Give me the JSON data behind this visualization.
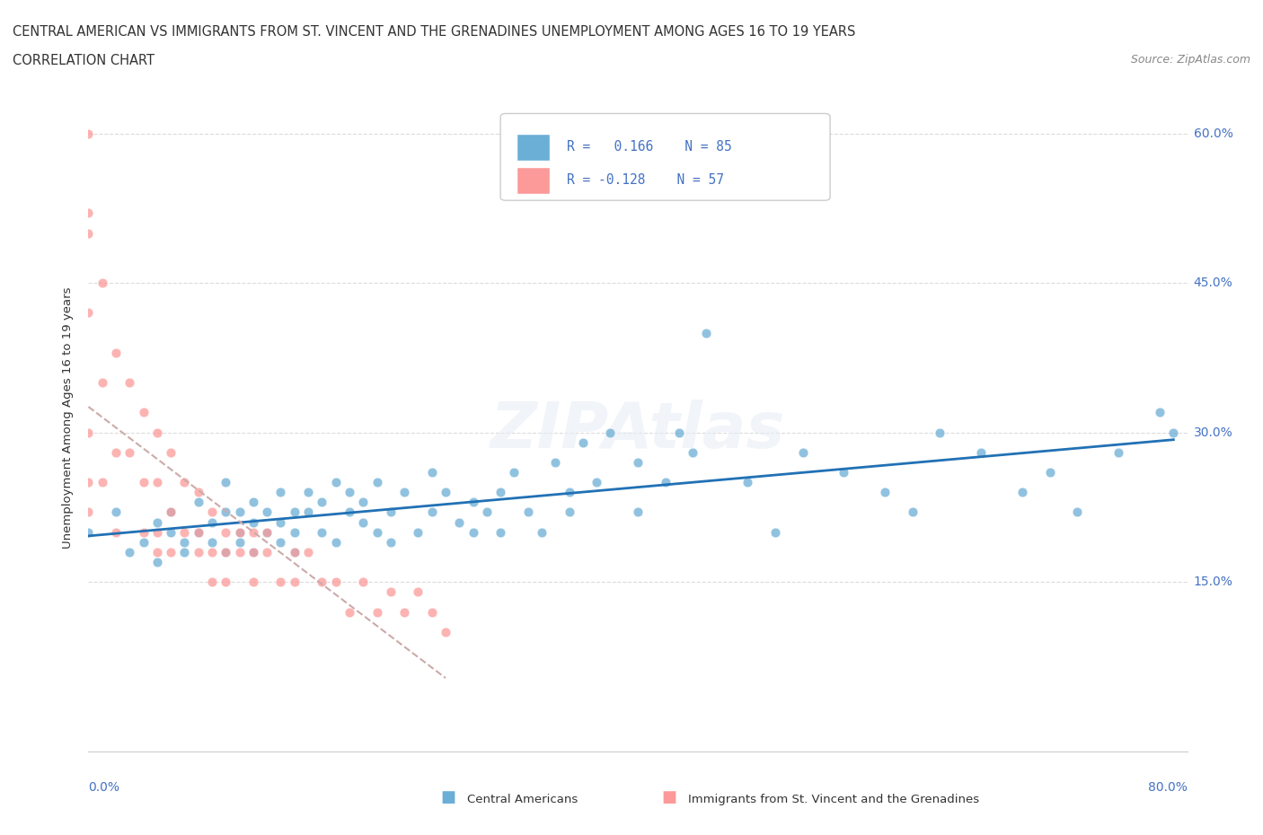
{
  "title_line1": "CENTRAL AMERICAN VS IMMIGRANTS FROM ST. VINCENT AND THE GRENADINES UNEMPLOYMENT AMONG AGES 16 TO 19 YEARS",
  "title_line2": "CORRELATION CHART",
  "source_text": "Source: ZipAtlas.com",
  "ylabel": "Unemployment Among Ages 16 to 19 years",
  "ytick_labels": [
    "15.0%",
    "30.0%",
    "45.0%",
    "60.0%"
  ],
  "ytick_values": [
    0.15,
    0.3,
    0.45,
    0.6
  ],
  "xlim": [
    0.0,
    0.8
  ],
  "ylim": [
    -0.02,
    0.65
  ],
  "r_central": 0.166,
  "r_stv": -0.128,
  "color_central": "#6baed6",
  "color_stv": "#fb9a99",
  "trendline_central_color": "#2171b5",
  "trendline_stv_color": "#ccaaaa",
  "central_americans_x": [
    0.0,
    0.02,
    0.03,
    0.04,
    0.05,
    0.05,
    0.06,
    0.06,
    0.07,
    0.07,
    0.08,
    0.08,
    0.09,
    0.09,
    0.1,
    0.1,
    0.1,
    0.11,
    0.11,
    0.11,
    0.12,
    0.12,
    0.12,
    0.13,
    0.13,
    0.14,
    0.14,
    0.14,
    0.15,
    0.15,
    0.15,
    0.16,
    0.16,
    0.17,
    0.17,
    0.18,
    0.18,
    0.19,
    0.19,
    0.2,
    0.2,
    0.21,
    0.21,
    0.22,
    0.22,
    0.23,
    0.24,
    0.25,
    0.25,
    0.26,
    0.27,
    0.28,
    0.28,
    0.29,
    0.3,
    0.3,
    0.31,
    0.32,
    0.33,
    0.34,
    0.35,
    0.35,
    0.36,
    0.37,
    0.38,
    0.4,
    0.4,
    0.42,
    0.43,
    0.44,
    0.45,
    0.48,
    0.5,
    0.52,
    0.55,
    0.58,
    0.6,
    0.62,
    0.65,
    0.68,
    0.7,
    0.72,
    0.75,
    0.78,
    0.79
  ],
  "central_americans_y": [
    0.2,
    0.22,
    0.18,
    0.19,
    0.17,
    0.21,
    0.2,
    0.22,
    0.19,
    0.18,
    0.2,
    0.23,
    0.21,
    0.19,
    0.22,
    0.18,
    0.25,
    0.2,
    0.22,
    0.19,
    0.21,
    0.23,
    0.18,
    0.22,
    0.2,
    0.19,
    0.24,
    0.21,
    0.22,
    0.2,
    0.18,
    0.24,
    0.22,
    0.2,
    0.23,
    0.25,
    0.19,
    0.22,
    0.24,
    0.21,
    0.23,
    0.2,
    0.25,
    0.22,
    0.19,
    0.24,
    0.2,
    0.26,
    0.22,
    0.24,
    0.21,
    0.23,
    0.2,
    0.22,
    0.24,
    0.2,
    0.26,
    0.22,
    0.2,
    0.27,
    0.22,
    0.24,
    0.29,
    0.25,
    0.3,
    0.22,
    0.27,
    0.25,
    0.3,
    0.28,
    0.4,
    0.25,
    0.2,
    0.28,
    0.26,
    0.24,
    0.22,
    0.3,
    0.28,
    0.24,
    0.26,
    0.22,
    0.28,
    0.32,
    0.3
  ],
  "stv_x": [
    0.0,
    0.0,
    0.0,
    0.0,
    0.0,
    0.0,
    0.0,
    0.01,
    0.01,
    0.01,
    0.02,
    0.02,
    0.02,
    0.03,
    0.03,
    0.04,
    0.04,
    0.04,
    0.05,
    0.05,
    0.05,
    0.05,
    0.06,
    0.06,
    0.06,
    0.07,
    0.07,
    0.08,
    0.08,
    0.08,
    0.09,
    0.09,
    0.09,
    0.1,
    0.1,
    0.1,
    0.11,
    0.11,
    0.12,
    0.12,
    0.12,
    0.13,
    0.13,
    0.14,
    0.15,
    0.15,
    0.16,
    0.17,
    0.18,
    0.19,
    0.2,
    0.21,
    0.22,
    0.23,
    0.24,
    0.25,
    0.26
  ],
  "stv_y": [
    0.6,
    0.52,
    0.5,
    0.42,
    0.3,
    0.25,
    0.22,
    0.45,
    0.35,
    0.25,
    0.38,
    0.28,
    0.2,
    0.35,
    0.28,
    0.32,
    0.25,
    0.2,
    0.3,
    0.25,
    0.2,
    0.18,
    0.28,
    0.22,
    0.18,
    0.25,
    0.2,
    0.24,
    0.2,
    0.18,
    0.22,
    0.18,
    0.15,
    0.2,
    0.18,
    0.15,
    0.2,
    0.18,
    0.2,
    0.18,
    0.15,
    0.2,
    0.18,
    0.15,
    0.18,
    0.15,
    0.18,
    0.15,
    0.15,
    0.12,
    0.15,
    0.12,
    0.14,
    0.12,
    0.14,
    0.12,
    0.1
  ]
}
